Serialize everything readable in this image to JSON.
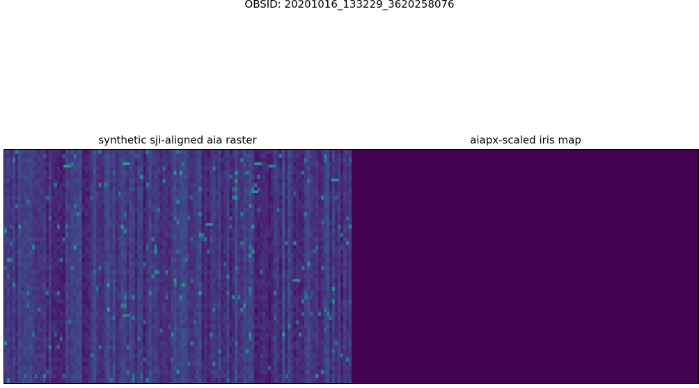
{
  "suptitle": "OBSID: 20201016_133229_3620258076",
  "chart_data": [
    {
      "type": "heatmap",
      "title": "synthetic sji-aligned aia raster",
      "colormap": "viridis",
      "colormap_colors": [
        "#440154",
        "#482777",
        "#3e4a89",
        "#31688e",
        "#26828e",
        "#1f9e89",
        "#35b779",
        "#6ece58",
        "#b5de2b",
        "#fde725"
      ],
      "axes_visible": false,
      "value_range": [
        0,
        1
      ],
      "dominant_level": 0.15,
      "bright_features": [
        {
          "x": 0.18,
          "y": 0.07,
          "value": 0.55
        },
        {
          "x": 0.35,
          "y": 0.06,
          "value": 0.55
        },
        {
          "x": 0.59,
          "y": 0.32,
          "value": 0.5
        },
        {
          "x": 0.72,
          "y": 0.18,
          "value": 0.5
        },
        {
          "x": 0.73,
          "y": 0.06,
          "value": 0.5
        },
        {
          "x": 0.77,
          "y": 0.07,
          "value": 0.45
        },
        {
          "x": 0.95,
          "y": 0.13,
          "value": 0.5
        },
        {
          "x": 0.35,
          "y": 0.71,
          "value": 0.45
        },
        {
          "x": 0.84,
          "y": 0.56,
          "value": 0.5
        }
      ]
    },
    {
      "type": "heatmap",
      "title": "aiapx-scaled iris map",
      "colormap": "viridis",
      "axes_visible": false,
      "value_range": [
        0,
        1
      ],
      "uniform_value": 0.0,
      "fill_color": "#440154"
    }
  ]
}
